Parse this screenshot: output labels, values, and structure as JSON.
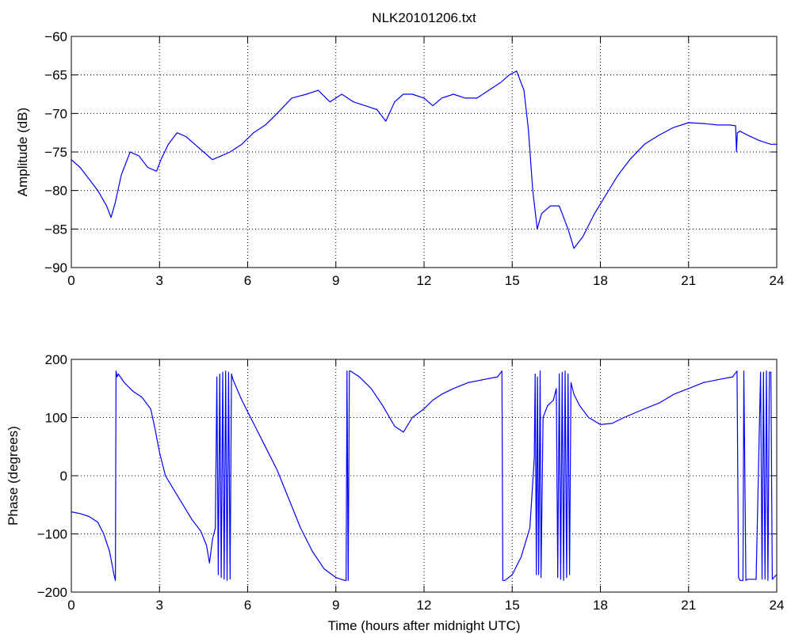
{
  "chart_data": [
    {
      "type": "line",
      "title": "NLK20101206.txt",
      "xlabel": "",
      "ylabel": "Amplitude (dB)",
      "xlim": [
        0,
        24
      ],
      "ylim": [
        -90,
        -60
      ],
      "xticks": [
        0,
        3,
        6,
        9,
        12,
        15,
        18,
        21,
        24
      ],
      "yticks": [
        -90,
        -85,
        -80,
        -75,
        -70,
        -65,
        -60
      ],
      "grid": true,
      "color": "#0000ff",
      "series": [
        {
          "x": [
            0,
            0.3,
            0.6,
            0.9,
            1.2,
            1.35,
            1.5,
            1.7,
            2.0,
            2.3,
            2.6,
            2.9,
            3.05,
            3.3,
            3.6,
            3.9,
            4.2,
            4.5,
            4.8,
            5.1,
            5.4,
            5.8,
            6.2,
            6.6,
            7.0,
            7.5,
            8.0,
            8.4,
            8.8,
            9.2,
            9.6,
            10.0,
            10.4,
            10.7,
            11.0,
            11.3,
            11.6,
            12.0,
            12.3,
            12.6,
            13.0,
            13.4,
            13.8,
            14.2,
            14.6,
            14.9,
            15.15,
            15.4,
            15.55,
            15.7,
            15.85,
            16.0,
            16.3,
            16.6,
            16.9,
            17.1,
            17.4,
            17.8,
            18.2,
            18.6,
            19.0,
            19.5,
            20.0,
            20.5,
            21.0,
            21.5,
            22.0,
            22.4,
            22.6,
            22.63,
            22.66,
            22.75,
            23.0,
            23.4,
            23.8,
            24.0
          ],
          "y": [
            -76,
            -77,
            -78.5,
            -80,
            -82,
            -83.5,
            -81.5,
            -78,
            -75,
            -75.5,
            -77,
            -77.5,
            -76,
            -74,
            -72.5,
            -73,
            -74,
            -75,
            -76,
            -75.5,
            -75,
            -74,
            -72.5,
            -71.5,
            -70,
            -68,
            -67.5,
            -67,
            -68.5,
            -67.5,
            -68.5,
            -69,
            -69.5,
            -71,
            -68.5,
            -67.5,
            -67.5,
            -68,
            -69,
            -68,
            -67.5,
            -68,
            -68,
            -67,
            -66,
            -65,
            -64.5,
            -67,
            -72,
            -80,
            -85,
            -83,
            -82,
            -82,
            -85,
            -87.5,
            -86,
            -83,
            -80.5,
            -78,
            -76,
            -74,
            -72.8,
            -71.8,
            -71.2,
            -71.3,
            -71.5,
            -71.5,
            -71.6,
            -75,
            -72.5,
            -72.3,
            -72.8,
            -73.5,
            -74,
            -74
          ]
        }
      ]
    },
    {
      "type": "line",
      "title": "",
      "xlabel": "Time (hours after midnight UTC)",
      "ylabel": "Phase (degrees)",
      "xlim": [
        0,
        24
      ],
      "ylim": [
        -200,
        200
      ],
      "xticks": [
        0,
        3,
        6,
        9,
        12,
        15,
        18,
        21,
        24
      ],
      "yticks": [
        -200,
        -100,
        0,
        100,
        200
      ],
      "grid": true,
      "color": "#0000ff",
      "series": [
        {
          "x": [
            0,
            0.3,
            0.6,
            0.9,
            1.1,
            1.3,
            1.45,
            1.5,
            1.52,
            1.56,
            1.6,
            1.8,
            2.1,
            2.4,
            2.7,
            2.85,
            3.0,
            3.2,
            3.5,
            3.8,
            4.1,
            4.4,
            4.6,
            4.7,
            4.8,
            4.9,
            4.95,
            5.0,
            5.05,
            5.1,
            5.15,
            5.2,
            5.25,
            5.3,
            5.35,
            5.4,
            5.45,
            5.5,
            5.8,
            6.2,
            6.6,
            7.0,
            7.4,
            7.8,
            8.2,
            8.6,
            9.0,
            9.3,
            9.35,
            9.38,
            9.42,
            9.46,
            9.5,
            9.8,
            10.2,
            10.6,
            11.0,
            11.3,
            11.6,
            12.0,
            12.3,
            12.6,
            13.0,
            13.5,
            14.0,
            14.5,
            14.65,
            14.68,
            14.75,
            15.0,
            15.3,
            15.6,
            15.75,
            15.78,
            15.82,
            15.86,
            15.9,
            15.95,
            15.98,
            16.05,
            16.2,
            16.4,
            16.5,
            16.55,
            16.6,
            16.65,
            16.7,
            16.75,
            16.8,
            16.85,
            16.9,
            16.95,
            17.0,
            17.1,
            17.3,
            17.6,
            18.0,
            18.4,
            18.8,
            19.5,
            20.0,
            20.5,
            21.0,
            21.5,
            22.0,
            22.5,
            22.65,
            22.7,
            22.75,
            22.85,
            22.88,
            22.95,
            23.0,
            23.3,
            23.45,
            23.5,
            23.55,
            23.6,
            23.65,
            23.7,
            23.75,
            23.8,
            23.85,
            23.9,
            24.0
          ],
          "y": [
            -62,
            -65,
            -70,
            -80,
            -100,
            -130,
            -170,
            -180,
            180,
            170,
            175,
            160,
            145,
            135,
            115,
            80,
            40,
            0,
            -25,
            -50,
            -75,
            -95,
            -120,
            -150,
            -110,
            -90,
            170,
            -170,
            175,
            -175,
            178,
            -178,
            180,
            -180,
            178,
            -178,
            175,
            165,
            130,
            90,
            50,
            10,
            -40,
            -90,
            -130,
            -160,
            -175,
            -180,
            -180,
            180,
            -180,
            180,
            180,
            170,
            150,
            120,
            85,
            75,
            100,
            115,
            130,
            140,
            150,
            160,
            165,
            170,
            180,
            -180,
            -180,
            -170,
            -140,
            -90,
            30,
            175,
            -170,
            170,
            -170,
            180,
            -175,
            100,
            120,
            130,
            150,
            -175,
            175,
            -178,
            178,
            -180,
            180,
            -175,
            175,
            -170,
            160,
            140,
            120,
            100,
            88,
            90,
            100,
            115,
            125,
            140,
            150,
            160,
            165,
            170,
            180,
            -175,
            -180,
            -180,
            180,
            -180,
            -178,
            -178,
            178,
            -178,
            178,
            -178,
            180,
            -180,
            178,
            178,
            -178,
            -175,
            -170
          ]
        }
      ]
    }
  ]
}
